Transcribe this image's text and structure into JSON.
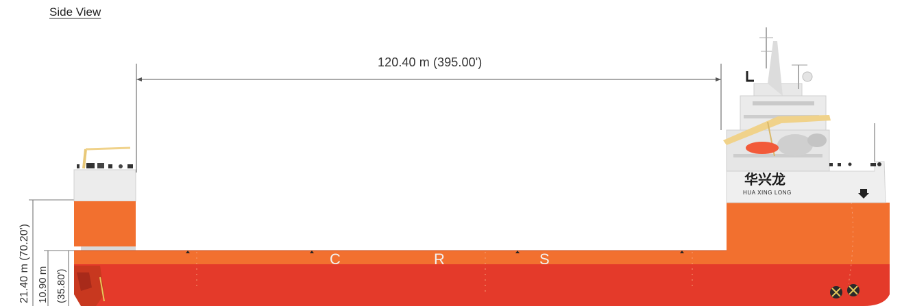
{
  "view_title": "Side View",
  "dimensions": {
    "deck_length": "120.40 m (395.00')",
    "depth_overall": "21.40 m (70.20')",
    "depth_deck_metric": "10.90 m",
    "depth_deck_imperial": "(35.80')"
  },
  "hull_marks": {
    "letter_1": "C",
    "letter_2": "R",
    "letter_3": "S"
  },
  "ship_name": {
    "chinese": "华兴龙",
    "english": "HUA XING LONG"
  },
  "colors": {
    "hull_upper": "#f2702f",
    "hull_lower": "#e43a2a",
    "deckhouse": "#ececec",
    "crane": "#f0d28a",
    "lifeboat": "#f25a3a"
  }
}
